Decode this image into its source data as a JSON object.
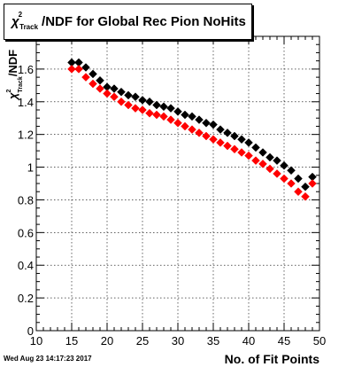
{
  "title": {
    "symbol": "χ",
    "superscript": "2",
    "subscript": "Track",
    "text": "/NDF for Global Rec Pion NoHits"
  },
  "footer": "Wed Aug 23 14:17:23 2017",
  "chart_data": {
    "type": "scatter",
    "title": "χ²_Track/NDF for Global Rec Pion NoHits",
    "xlabel": "No. of Fit Points",
    "ylabel": "χ²_Track/NDF",
    "xlim": [
      10,
      50
    ],
    "ylim": [
      0,
      1.8
    ],
    "x_ticks": [
      "10",
      "15",
      "20",
      "25",
      "30",
      "35",
      "40",
      "45",
      "50"
    ],
    "y_ticks": [
      "0",
      "0.2",
      "0.4",
      "0.6",
      "0.8",
      "1",
      "1.2",
      "1.4",
      "1.6"
    ],
    "grid": true,
    "series": [
      {
        "color": "#000000",
        "x": [
          15,
          16,
          17,
          18,
          19,
          20,
          21,
          22,
          23,
          24,
          25,
          26,
          27,
          28,
          29,
          30,
          31,
          32,
          33,
          34,
          35,
          36,
          37,
          38,
          39,
          40,
          41,
          42,
          43,
          44,
          45,
          46,
          47,
          48,
          49
        ],
        "y": [
          1.64,
          1.64,
          1.61,
          1.57,
          1.53,
          1.49,
          1.48,
          1.46,
          1.44,
          1.43,
          1.41,
          1.4,
          1.38,
          1.37,
          1.36,
          1.34,
          1.32,
          1.31,
          1.29,
          1.27,
          1.26,
          1.23,
          1.21,
          1.19,
          1.17,
          1.15,
          1.12,
          1.09,
          1.06,
          1.04,
          1.01,
          0.98,
          0.93,
          0.88,
          0.94
        ]
      },
      {
        "color": "#ff0000",
        "x": [
          15,
          16,
          17,
          18,
          19,
          20,
          21,
          22,
          23,
          24,
          25,
          26,
          27,
          28,
          29,
          30,
          31,
          32,
          33,
          34,
          35,
          36,
          37,
          38,
          39,
          40,
          41,
          42,
          43,
          44,
          45,
          46,
          47,
          48,
          49
        ],
        "y": [
          1.6,
          1.6,
          1.55,
          1.51,
          1.48,
          1.45,
          1.43,
          1.4,
          1.38,
          1.36,
          1.35,
          1.33,
          1.32,
          1.31,
          1.29,
          1.27,
          1.25,
          1.23,
          1.21,
          1.19,
          1.17,
          1.15,
          1.13,
          1.11,
          1.09,
          1.07,
          1.04,
          1.02,
          0.99,
          0.96,
          0.93,
          0.9,
          0.85,
          0.82,
          0.9
        ]
      }
    ]
  }
}
